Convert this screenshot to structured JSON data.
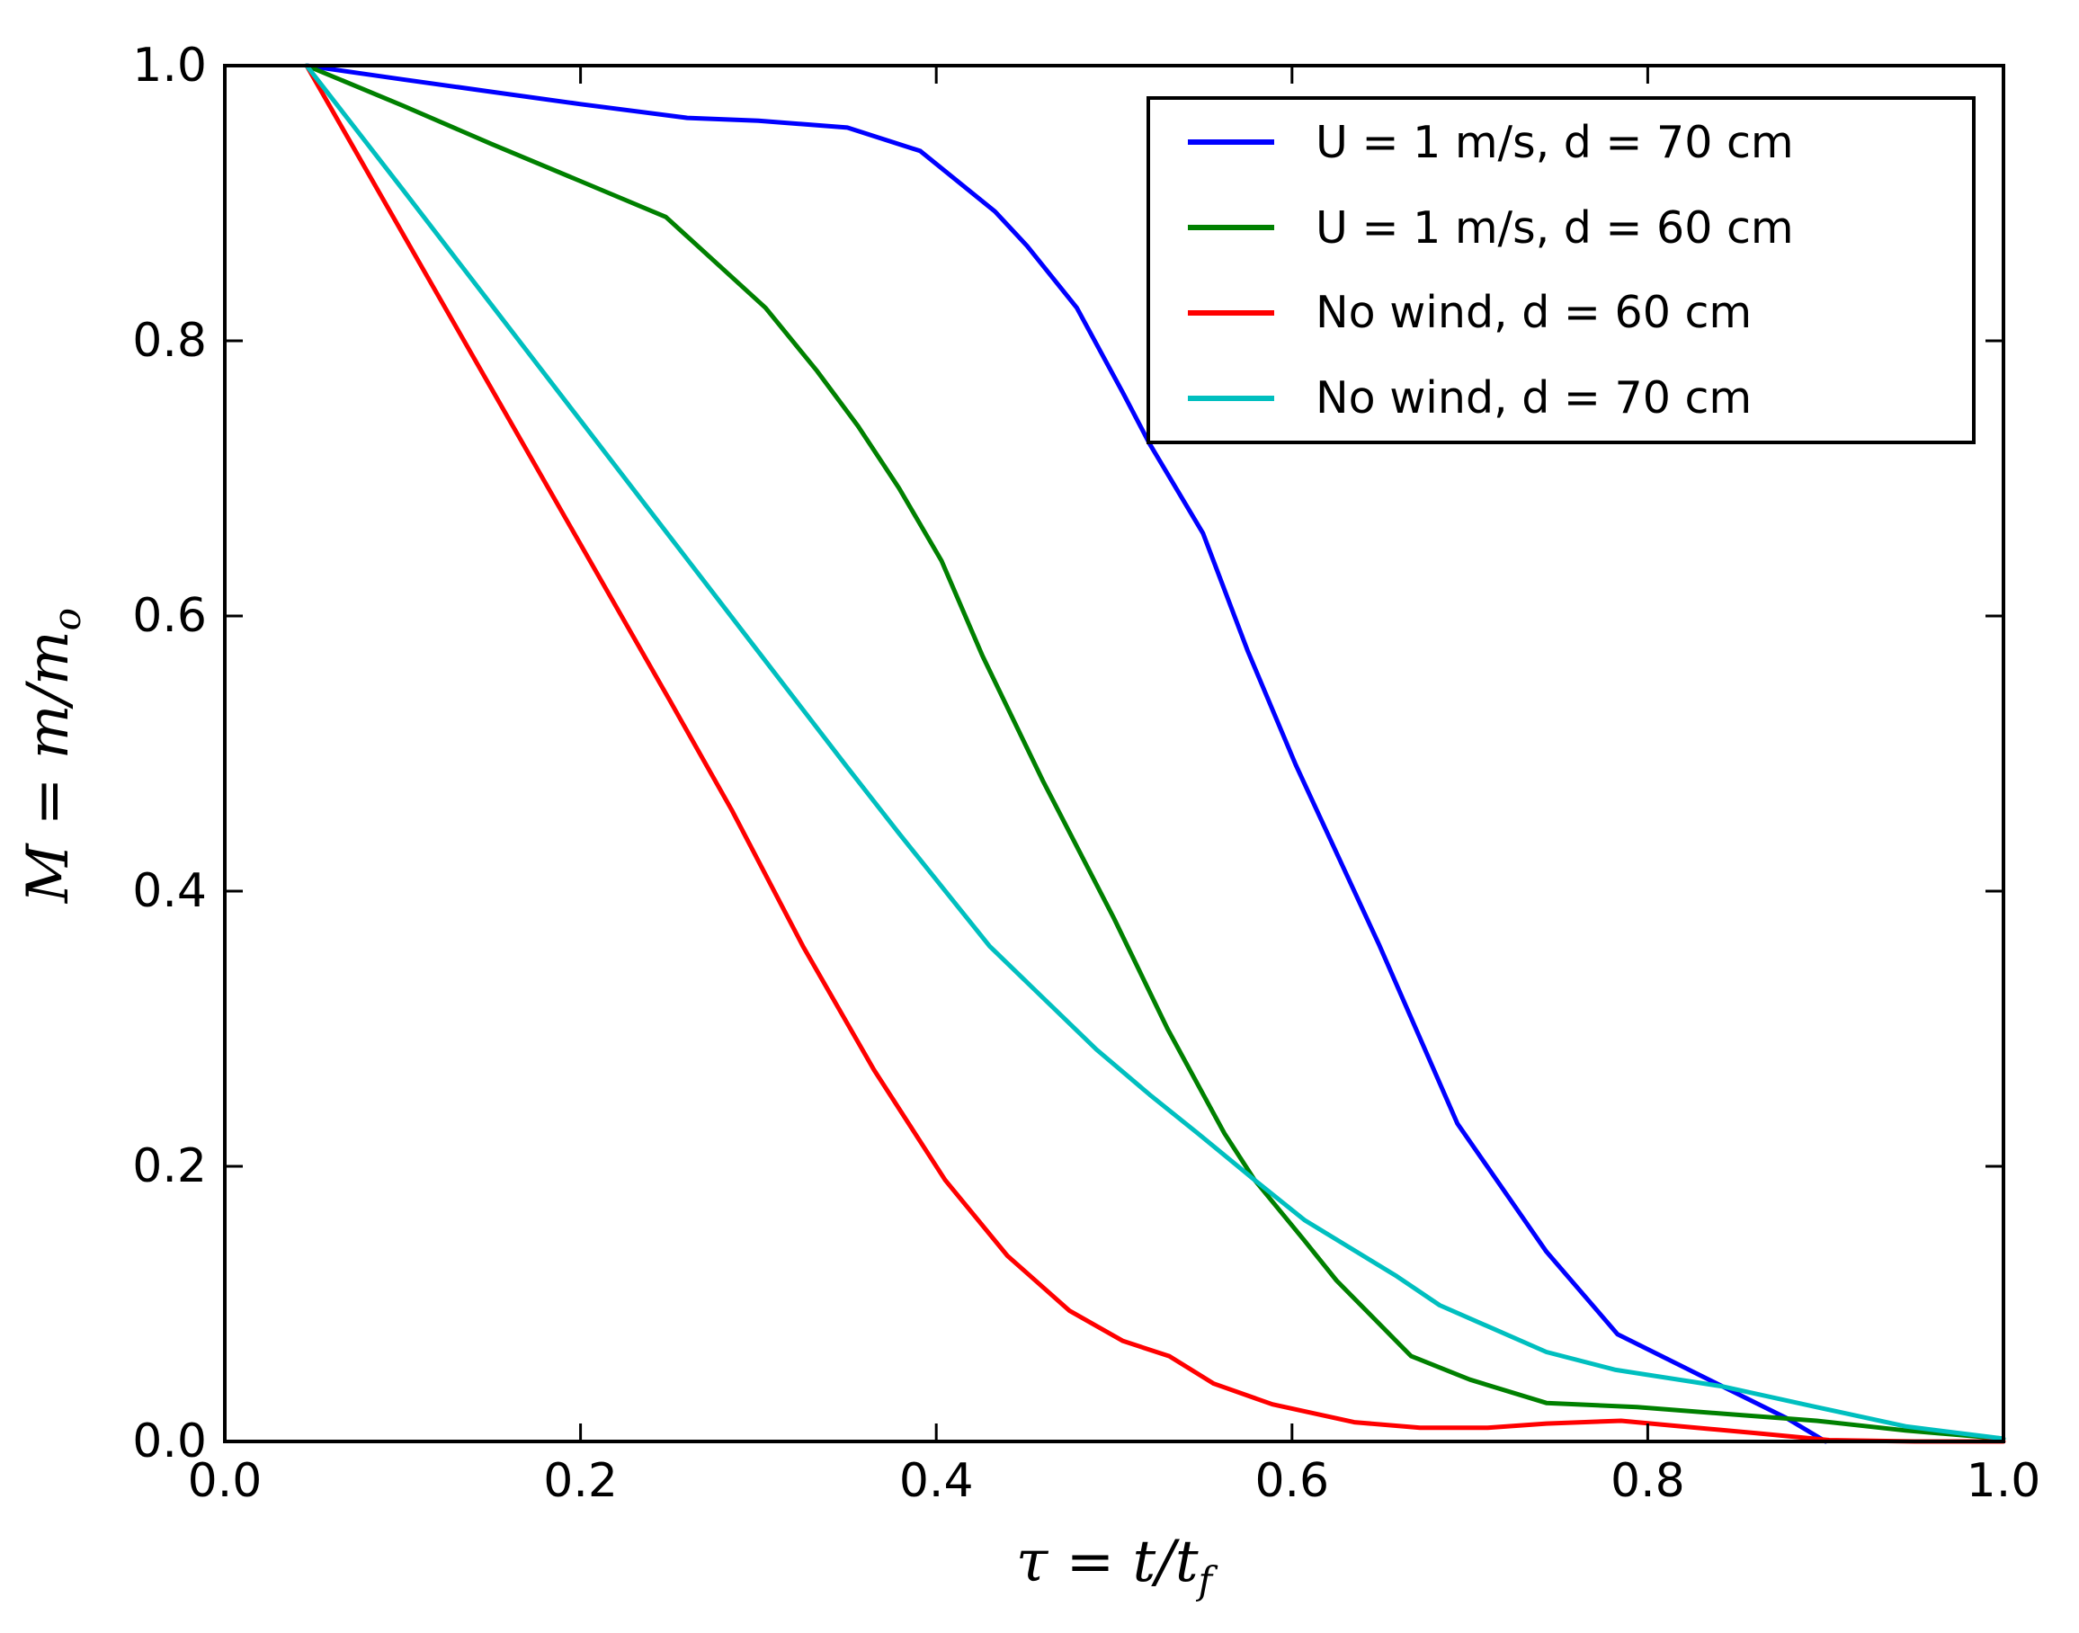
{
  "chart_data": {
    "type": "line",
    "title": "",
    "xlabel": "τ = t/t_f",
    "ylabel": "M = m/m_o",
    "xlabel_main": "τ = t/t",
    "xlabel_sub": "f",
    "ylabel_main": "M = m/m",
    "ylabel_sub": "o",
    "xlim": [
      0.0,
      1.0
    ],
    "ylim": [
      0.0,
      1.0
    ],
    "x_ticks": [
      0.0,
      0.2,
      0.4,
      0.6,
      0.8,
      1.0
    ],
    "x_tick_labels": [
      "0.0",
      "0.2",
      "0.4",
      "0.6",
      "0.8",
      "1.0"
    ],
    "y_ticks": [
      0.0,
      0.2,
      0.4,
      0.6,
      0.8,
      1.0
    ],
    "y_tick_labels": [
      "0.0",
      "0.2",
      "0.4",
      "0.6",
      "0.8",
      "1.0"
    ],
    "grid": false,
    "legend_position": "upper right",
    "frame_color": "#000000",
    "background_color": "#ffffff",
    "series": [
      {
        "name": "u1-d70",
        "label": "U = 1 m/s, d = 70 cm",
        "color": "#0000ff",
        "points": [
          [
            0.046,
            1.0
          ],
          [
            0.1,
            0.99
          ],
          [
            0.15,
            0.981
          ],
          [
            0.2,
            0.972
          ],
          [
            0.26,
            0.962
          ],
          [
            0.3,
            0.96
          ],
          [
            0.35,
            0.955
          ],
          [
            0.391,
            0.938
          ],
          [
            0.433,
            0.894
          ],
          [
            0.451,
            0.869
          ],
          [
            0.479,
            0.824
          ],
          [
            0.505,
            0.762
          ],
          [
            0.52,
            0.725
          ],
          [
            0.55,
            0.66
          ],
          [
            0.575,
            0.575
          ],
          [
            0.602,
            0.492
          ],
          [
            0.649,
            0.361
          ],
          [
            0.693,
            0.231
          ],
          [
            0.743,
            0.138
          ],
          [
            0.783,
            0.078
          ],
          [
            0.842,
            0.04
          ],
          [
            0.878,
            0.017
          ],
          [
            0.9,
            0.0
          ]
        ]
      },
      {
        "name": "u1-d60",
        "label": "U = 1 m/s, d = 60 cm",
        "color": "#008000",
        "points": [
          [
            0.046,
            1.0
          ],
          [
            0.1,
            0.971
          ],
          [
            0.15,
            0.943
          ],
          [
            0.2,
            0.916
          ],
          [
            0.248,
            0.89
          ],
          [
            0.304,
            0.824
          ],
          [
            0.333,
            0.778
          ],
          [
            0.356,
            0.738
          ],
          [
            0.379,
            0.693
          ],
          [
            0.403,
            0.64
          ],
          [
            0.426,
            0.571
          ],
          [
            0.46,
            0.48
          ],
          [
            0.5,
            0.38
          ],
          [
            0.53,
            0.3
          ],
          [
            0.562,
            0.224
          ],
          [
            0.579,
            0.19
          ],
          [
            0.607,
            0.146
          ],
          [
            0.625,
            0.117
          ],
          [
            0.667,
            0.062
          ],
          [
            0.7,
            0.045
          ],
          [
            0.743,
            0.028
          ],
          [
            0.794,
            0.025
          ],
          [
            0.844,
            0.02
          ],
          [
            0.895,
            0.015
          ],
          [
            0.945,
            0.008
          ],
          [
            1.0,
            0.002
          ]
        ]
      },
      {
        "name": "nowind-d60",
        "label": "No wind, d = 60 cm",
        "color": "#ff0000",
        "points": [
          [
            0.046,
            1.0
          ],
          [
            0.1,
            0.878
          ],
          [
            0.15,
            0.765
          ],
          [
            0.2,
            0.652
          ],
          [
            0.25,
            0.539
          ],
          [
            0.285,
            0.459
          ],
          [
            0.325,
            0.36
          ],
          [
            0.365,
            0.27
          ],
          [
            0.405,
            0.19
          ],
          [
            0.44,
            0.135
          ],
          [
            0.475,
            0.095
          ],
          [
            0.505,
            0.073
          ],
          [
            0.531,
            0.062
          ],
          [
            0.556,
            0.042
          ],
          [
            0.589,
            0.027
          ],
          [
            0.635,
            0.014
          ],
          [
            0.672,
            0.01
          ],
          [
            0.71,
            0.01
          ],
          [
            0.743,
            0.013
          ],
          [
            0.785,
            0.015
          ],
          [
            0.819,
            0.011
          ],
          [
            0.861,
            0.006
          ],
          [
            0.902,
            0.001
          ],
          [
            0.95,
            0.0
          ],
          [
            1.0,
            0.0
          ]
        ]
      },
      {
        "name": "nowind-d70",
        "label": "No wind, d = 70 cm",
        "color": "#00bfbf",
        "points": [
          [
            0.046,
            1.0
          ],
          [
            0.1,
            0.91
          ],
          [
            0.15,
            0.826
          ],
          [
            0.2,
            0.742
          ],
          [
            0.25,
            0.658
          ],
          [
            0.3,
            0.574
          ],
          [
            0.35,
            0.49
          ],
          [
            0.379,
            0.442
          ],
          [
            0.43,
            0.36
          ],
          [
            0.49,
            0.285
          ],
          [
            0.52,
            0.252
          ],
          [
            0.547,
            0.224
          ],
          [
            0.579,
            0.19
          ],
          [
            0.607,
            0.161
          ],
          [
            0.659,
            0.12
          ],
          [
            0.683,
            0.099
          ],
          [
            0.743,
            0.065
          ],
          [
            0.782,
            0.052
          ],
          [
            0.842,
            0.04
          ],
          [
            0.895,
            0.025
          ],
          [
            0.945,
            0.011
          ],
          [
            1.0,
            0.002
          ]
        ]
      }
    ]
  }
}
